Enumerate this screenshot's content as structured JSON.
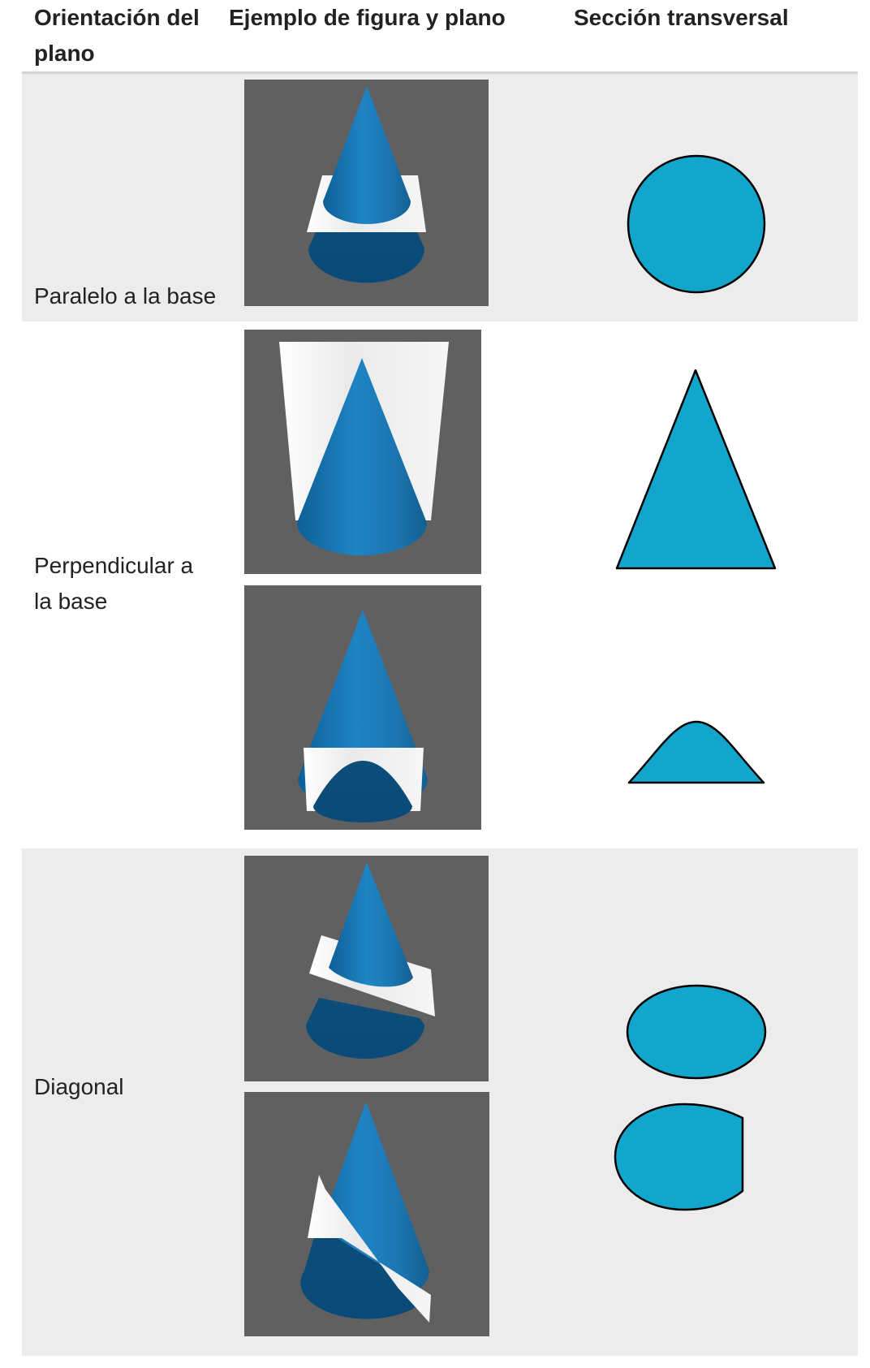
{
  "table": {
    "headers": {
      "orientation": "Orientación del plano",
      "example": "Ejemplo de figura y plano",
      "cross_section": "Sección transversal"
    },
    "rows": [
      {
        "orientation": "Paralelo a la base",
        "examples": [
          {
            "icon": "cone-horizontal-plane"
          }
        ],
        "cross_sections": [
          {
            "shape": "circle"
          }
        ]
      },
      {
        "orientation": "Perpendicular a la base",
        "examples": [
          {
            "icon": "cone-vertical-plane-through-apex"
          },
          {
            "icon": "cone-vertical-plane-off-center"
          }
        ],
        "cross_sections": [
          {
            "shape": "triangle"
          },
          {
            "shape": "parabola"
          }
        ]
      },
      {
        "orientation": "Diagonal",
        "examples": [
          {
            "icon": "cone-tilted-plane"
          },
          {
            "icon": "cone-steep-tilted-plane"
          }
        ],
        "cross_sections": [
          {
            "shape": "ellipse"
          },
          {
            "shape": "truncated-ellipse"
          }
        ]
      }
    ]
  },
  "colors": {
    "cone": "#1f7fbe",
    "render_background": "#606060",
    "plane": "#f2f2f2",
    "section_fill": "#12a6cc",
    "row_shading": "#ececec",
    "header_rule": "#d4d4d4"
  }
}
